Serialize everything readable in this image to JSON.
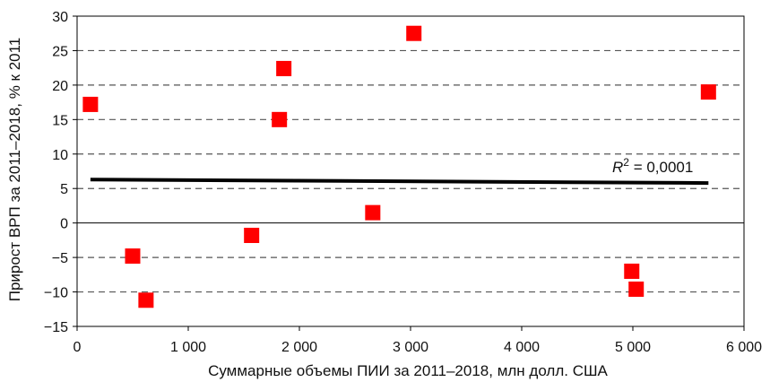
{
  "chart_data": {
    "type": "scatter",
    "xlabel": "Суммарные объемы ПИИ за 2011–2018, млн долл. США",
    "ylabel": "Прирост ВРП за 2011–2018, % к 2011",
    "xlim": [
      0,
      6000
    ],
    "ylim": [
      -15,
      30
    ],
    "x_ticks": [
      0,
      1000,
      2000,
      3000,
      4000,
      5000,
      6000
    ],
    "x_tick_labels": [
      "0",
      "1 000",
      "2 000",
      "3 000",
      "4 000",
      "5 000",
      "6 000"
    ],
    "y_ticks": [
      -15,
      -10,
      -5,
      0,
      5,
      10,
      15,
      20,
      25,
      30
    ],
    "y_tick_labels": [
      "−15",
      "−10",
      "−5",
      "0",
      "5",
      "10",
      "15",
      "20",
      "25",
      "30"
    ],
    "gridlines": "horizontal dashed",
    "points": [
      {
        "x": 120,
        "y": 17.2
      },
      {
        "x": 500,
        "y": -4.8
      },
      {
        "x": 620,
        "y": -11.2
      },
      {
        "x": 1570,
        "y": -1.8
      },
      {
        "x": 1820,
        "y": 15.0
      },
      {
        "x": 1860,
        "y": 22.4
      },
      {
        "x": 2660,
        "y": 1.5
      },
      {
        "x": 3030,
        "y": 27.5
      },
      {
        "x": 4990,
        "y": -7.0
      },
      {
        "x": 5030,
        "y": -9.6
      },
      {
        "x": 5680,
        "y": 19.0
      }
    ],
    "trendline": {
      "x": [
        120,
        5680
      ],
      "y": [
        6.3,
        5.8
      ]
    },
    "annotation": {
      "r_symbol": "R",
      "r_exponent": "2",
      "r_value": " = 0,0001"
    },
    "colors": {
      "marker": "#ff0000",
      "trendline": "#000000",
      "grid": "#555555",
      "axis": "#000000"
    }
  }
}
